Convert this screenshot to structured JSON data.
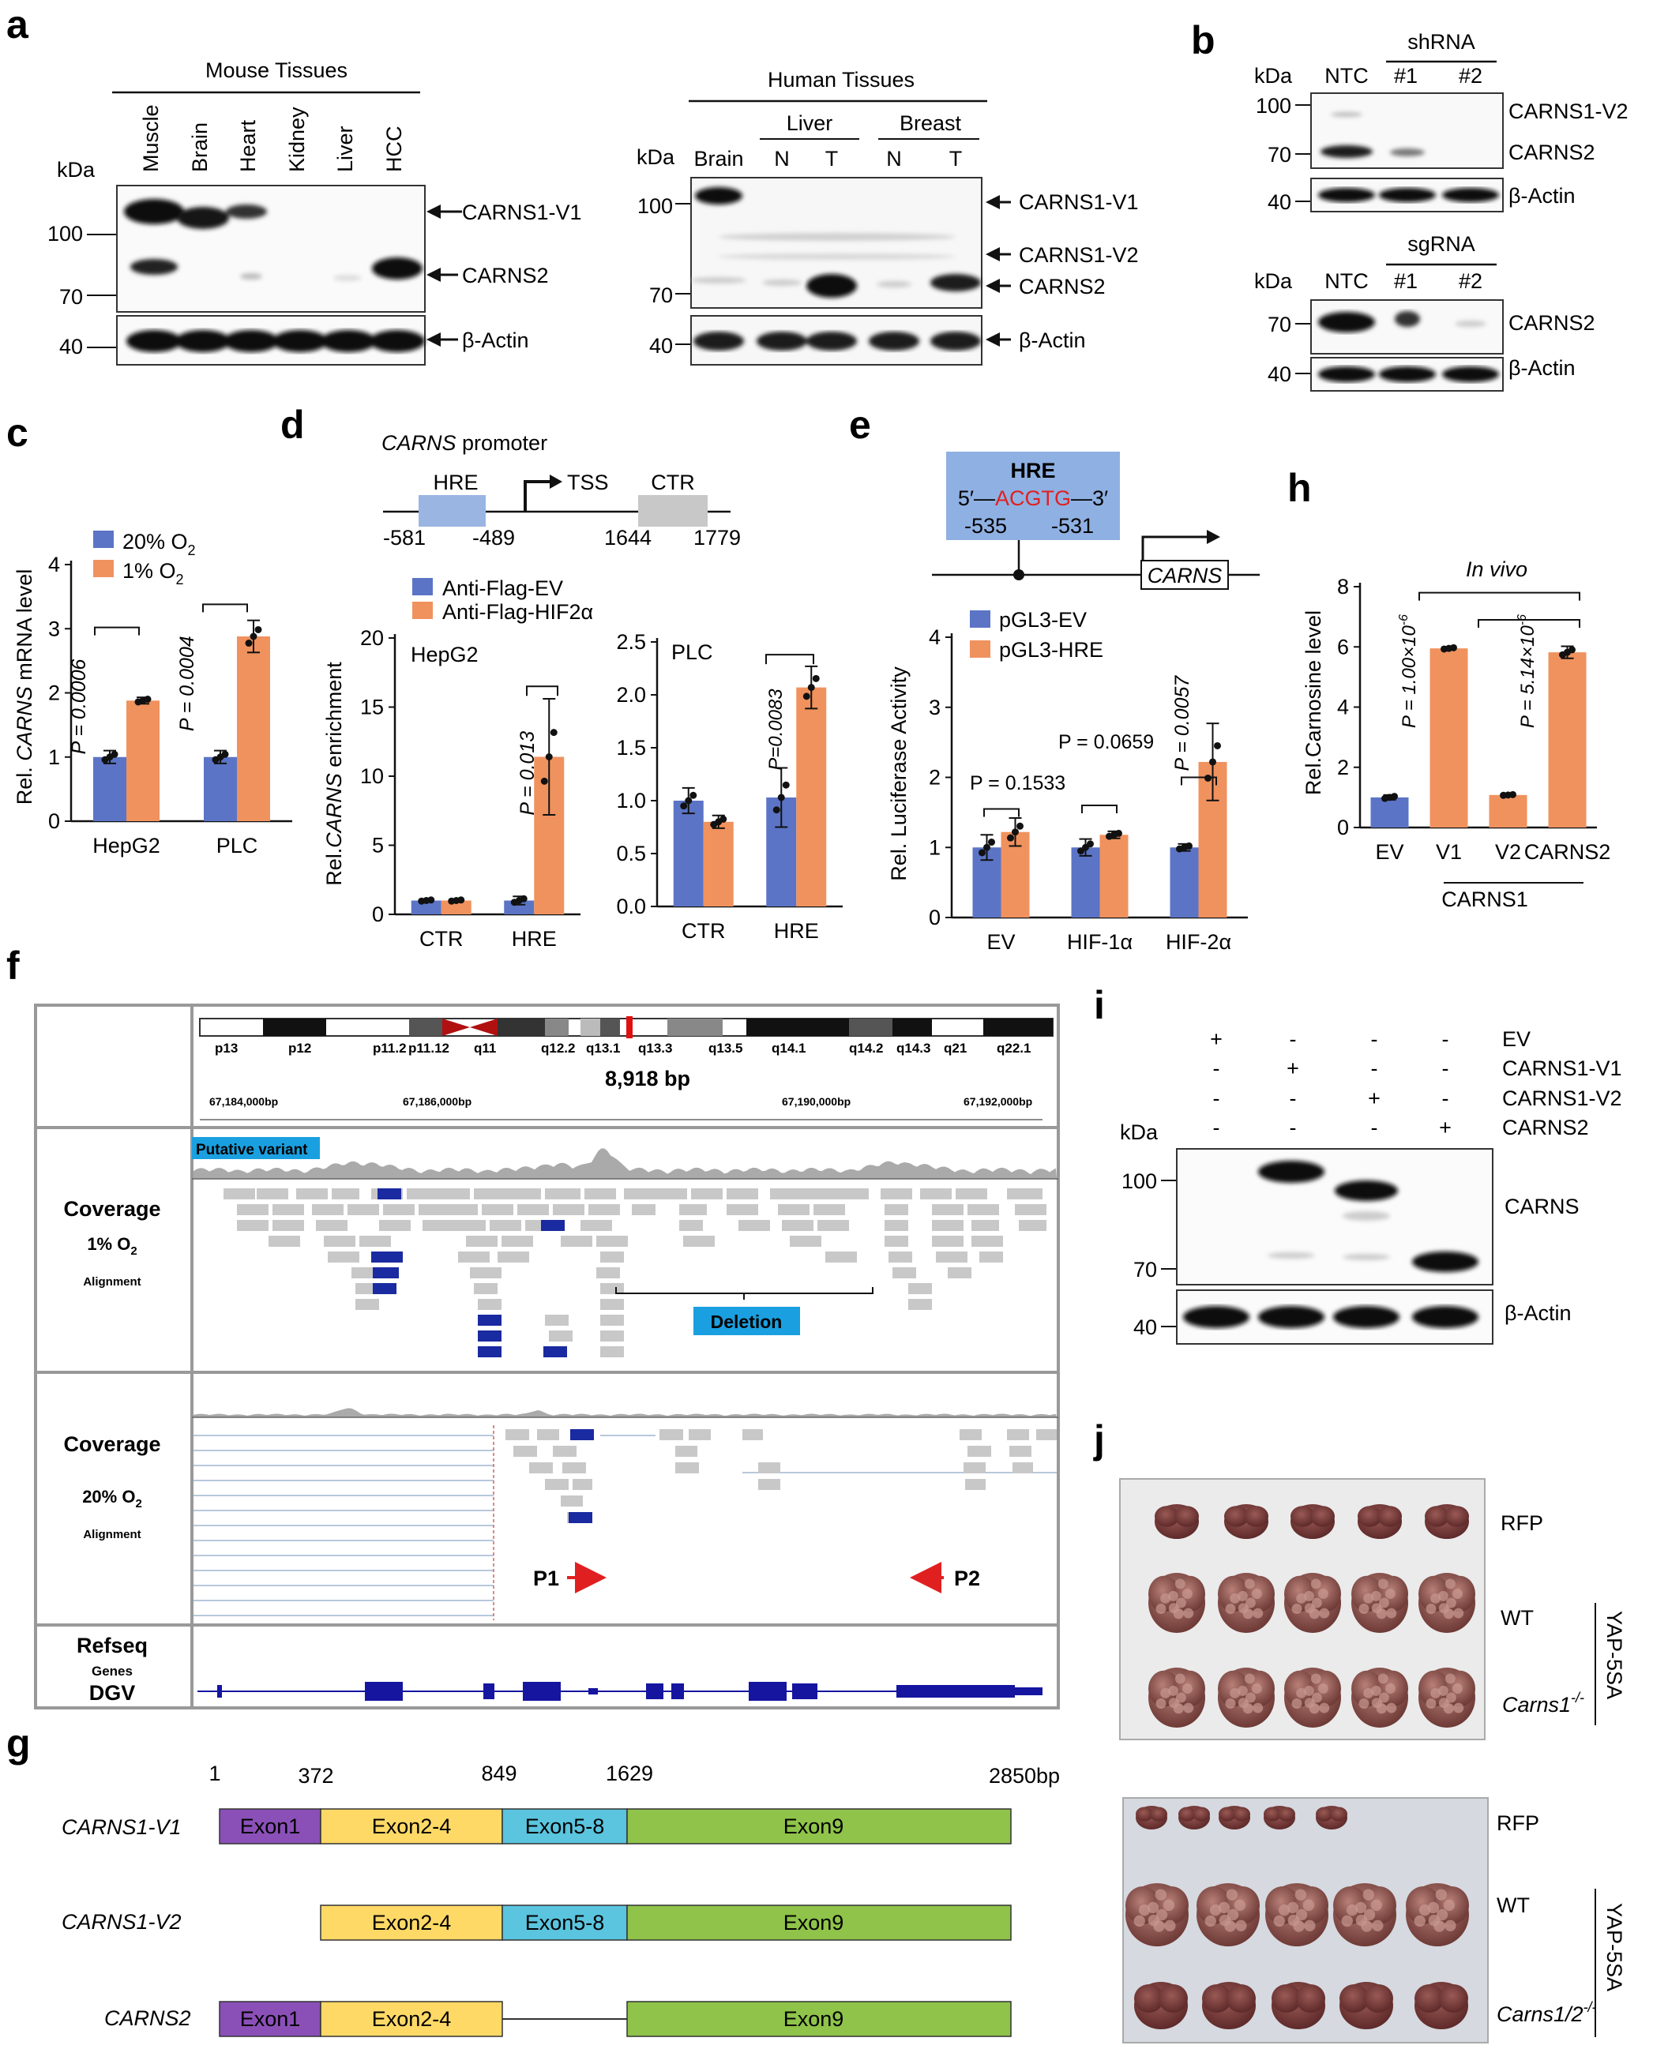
{
  "panel_labels": [
    "a",
    "b",
    "c",
    "d",
    "e",
    "f",
    "g",
    "h",
    "i",
    "j"
  ],
  "a": {
    "mouse_title": "Mouse Tissues",
    "mouse_lanes": [
      "Muscle",
      "Brain",
      "Heart",
      "Kidney",
      "Liver",
      "HCC"
    ],
    "kda": "kDa",
    "mouse_markers": [
      "100",
      "70",
      "40"
    ],
    "mouse_bands": [
      "CARNS1-V1",
      "CARNS2",
      "β-Actin"
    ],
    "human_title": "Human Tissues",
    "human_groups": [
      "Liver",
      "Breast"
    ],
    "human_lanes": [
      "Brain",
      "N",
      "T",
      "N",
      "T"
    ],
    "human_markers": [
      "100",
      "70",
      "40"
    ],
    "human_bands": [
      "CARNS1-V1",
      "CARNS1-V2",
      "CARNS2",
      "β-Actin"
    ]
  },
  "b": {
    "sh_title": "shRNA",
    "sg_title": "sgRNA",
    "lanes": [
      "NTC",
      "#1",
      "#2"
    ],
    "kda": "kDa",
    "sh_markers": [
      "100",
      "70",
      "40"
    ],
    "sh_bands": [
      "CARNS1-V2",
      "CARNS2",
      "β-Actin"
    ],
    "sg_markers": [
      "70",
      "40"
    ],
    "sg_bands": [
      "CARNS2",
      "β-Actin"
    ]
  },
  "chart_data": [
    {
      "id": "c",
      "type": "bar",
      "categories": [
        "HepG2",
        "PLC"
      ],
      "series": [
        {
          "name": "20% O2",
          "values": [
            1.0,
            1.0
          ]
        },
        {
          "name": "1% O2",
          "values": [
            1.88,
            2.88
          ]
        }
      ],
      "errors": [
        [
          0.1,
          0.1
        ],
        [
          0.05,
          0.25
        ]
      ],
      "ylabel": "Rel. CARNS mRNA level",
      "ylim": [
        0,
        4
      ],
      "yticks": [
        0,
        1,
        2,
        3,
        4
      ],
      "pvalues": [
        "P = 0.0006",
        "P = 0.0004"
      ]
    },
    {
      "id": "d-hepg2",
      "type": "bar",
      "title": "HepG2",
      "categories": [
        "CTR",
        "HRE"
      ],
      "series": [
        {
          "name": "Anti-Flag-EV",
          "values": [
            1.0,
            1.0
          ]
        },
        {
          "name": "Anti-Flag-HIF2α",
          "values": [
            1.0,
            11.4
          ]
        }
      ],
      "errors": [
        [
          0.1,
          0.3
        ],
        [
          0.1,
          4.2
        ]
      ],
      "ylabel": "Rel.CARNS enrichment",
      "ylim": [
        0,
        20
      ],
      "yticks": [
        0,
        5,
        10,
        15,
        20
      ],
      "pvalues": [
        "P = 0.013"
      ]
    },
    {
      "id": "d-plc",
      "type": "bar",
      "title": "PLC",
      "categories": [
        "CTR",
        "HRE"
      ],
      "series": [
        {
          "name": "Anti-Flag-EV",
          "values": [
            1.0,
            1.03
          ]
        },
        {
          "name": "Anti-Flag-HIF2α",
          "values": [
            0.8,
            2.07
          ]
        }
      ],
      "errors": [
        [
          0.12,
          0.28
        ],
        [
          0.06,
          0.2
        ]
      ],
      "ylim": [
        0,
        2.5
      ],
      "yticks": [
        "0.0",
        "0.5",
        "1.0",
        "1.5",
        "2.0",
        "2.5"
      ],
      "pvalues": [
        "P=0.0083"
      ]
    },
    {
      "id": "e",
      "type": "bar",
      "categories": [
        "EV",
        "HIF-1α",
        "HIF-2α"
      ],
      "series": [
        {
          "name": "pGL3-EV",
          "values": [
            1.0,
            1.0,
            1.0
          ]
        },
        {
          "name": "pGL3-HRE",
          "values": [
            1.22,
            1.18,
            2.22
          ]
        }
      ],
      "errors": [
        [
          0.18,
          0.12,
          0.05
        ],
        [
          0.2,
          0.05,
          0.55
        ]
      ],
      "ylabel": "Rel. Luciferase Activity",
      "ylim": [
        0,
        4
      ],
      "yticks": [
        0,
        1,
        2,
        3,
        4
      ],
      "pvalues": [
        "P = 0.1533",
        "P = 0.0659",
        "P = 0.0057"
      ]
    },
    {
      "id": "h",
      "type": "bar",
      "title": "In vivo",
      "categories": [
        "EV",
        "V1",
        "V2",
        "CARNS2"
      ],
      "group_label": "CARNS1",
      "values": [
        1.0,
        5.95,
        1.08,
        5.82
      ],
      "errors": [
        0.08,
        0.05,
        0.03,
        0.2
      ],
      "colors": [
        "#5b74c6",
        "#f0925e",
        "#f0925e",
        "#f0925e"
      ],
      "ylabel": "Rel.Carnosine level",
      "ylim": [
        0,
        8
      ],
      "yticks": [
        0,
        2,
        4,
        6,
        8
      ],
      "pvalues": [
        "P = 1.00×10",
        "P = 5.14×10"
      ],
      "p_exp": "-6"
    }
  ],
  "c": {
    "legend": [
      "20% O",
      "1% O"
    ],
    "sub": "2",
    "ylabel_pre": "Rel. ",
    "ylabel_it": "CARNS",
    "ylabel_post": " mRNA level"
  },
  "d": {
    "promoter_title_it": "CARNS",
    "promoter_title": " promoter",
    "hre": "HRE",
    "tss": "TSS",
    "ctr": "CTR",
    "positions": [
      "-581",
      "-489",
      "1644",
      "1779"
    ],
    "legend": [
      "Anti-Flag-EV",
      "Anti-Flag-HIF2α"
    ],
    "ylabel_pre": "Rel.",
    "ylabel_it": "CARNS",
    "ylabel_post": " enrichment"
  },
  "e": {
    "hre": "HRE",
    "seq_5": "5′—",
    "seq": "ACGTG",
    "seq_3": "—3′",
    "pos": [
      "-535",
      "-531"
    ],
    "gene": "CARNS",
    "legend": [
      "pGL3-EV",
      "pGL3-HRE"
    ]
  },
  "f": {
    "bands": [
      "p13",
      "p12",
      "p11.2",
      "p11.12",
      "q11",
      "q12.2",
      "q13.1",
      "q13.3",
      "q13.5",
      "q14.1",
      "q14.2",
      "q14.3",
      "q21",
      "q22.1"
    ],
    "span": "8,918 bp",
    "coords": [
      "67,184,000bp",
      "67,186,000bp",
      "67,190,000bp",
      "67,192,000bp"
    ],
    "putative": "Putative variant",
    "deletion": "Deletion",
    "track1": [
      "Coverage",
      "1% O",
      "2",
      "Alignment"
    ],
    "track2": [
      "Coverage",
      "20% O",
      "2",
      "Alignment"
    ],
    "refseq": "Refseq",
    "genes": "Genes",
    "dgv": "DGV",
    "p1": "P1",
    "p2": "P2"
  },
  "g": {
    "positions": [
      "1",
      "372",
      "849",
      "1629",
      "2850bp"
    ],
    "rows": [
      {
        "name": "CARNS1-V1",
        "exons": [
          "Exon1",
          "Exon2-4",
          "Exon5-8",
          "Exon9"
        ]
      },
      {
        "name": "CARNS1-V2",
        "exons": [
          "Exon2-4",
          "Exon5-8",
          "Exon9"
        ]
      },
      {
        "name": "CARNS2",
        "exons": [
          "Exon1",
          "Exon2-4",
          "Exon9"
        ]
      }
    ],
    "colors": {
      "exon1": "#8b50b8",
      "exon2_4": "#ffd966",
      "exon5_8": "#5bc4de",
      "exon9": "#8fc34a"
    }
  },
  "i": {
    "conditions": [
      "EV",
      "CARNS1-V1",
      "CARNS1-V2",
      "CARNS2"
    ],
    "signs": [
      [
        "+",
        "-",
        "-",
        "-"
      ],
      [
        "-",
        "+",
        "-",
        "-"
      ],
      [
        "-",
        "-",
        "+",
        "-"
      ],
      [
        "-",
        "-",
        "-",
        "+"
      ]
    ],
    "kda": "kDa",
    "markers": [
      "100",
      "70",
      "40"
    ],
    "bands": [
      "CARNS",
      "β-Actin"
    ]
  },
  "j": {
    "top_labels": [
      "RFP",
      "WT",
      "Carns1"
    ],
    "top_sup": "-/-",
    "bottom_labels": [
      "RFP",
      "WT",
      "Carns1/2"
    ],
    "bottom_sup": "-/-",
    "model": "YAP-5SA"
  }
}
